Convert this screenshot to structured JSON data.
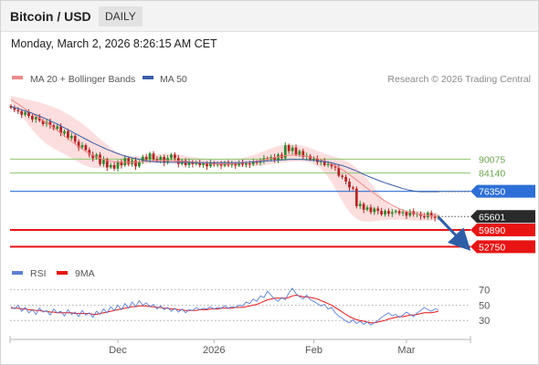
{
  "header": {
    "title": "Bitcoin / USD",
    "timeframe": "DAILY"
  },
  "datetime": "Monday, March 2, 2026 8:26:15 AM CET",
  "credit": "Research © 2026 Trading Central",
  "colors": {
    "bollinger": "#f08a8a",
    "ma50": "#3b5ea8",
    "up": "#2c8a2c",
    "down": "#b82222",
    "resistance": "#8cc66e",
    "pivot": "#2d6fd6",
    "support": "#e81414",
    "rsi": "#5b7fd4"
  },
  "chart_data": [
    {
      "type": "candlestick",
      "legend": [
        {
          "name": "MA 20 + Bollinger Bands",
          "color": "#f08a8a"
        },
        {
          "name": "MA 50",
          "color": "#3b5ea8"
        }
      ],
      "x_ticks": [
        "Dec",
        "2026",
        "Feb",
        "Mar"
      ],
      "ylim": [
        49000,
        119000
      ],
      "last_price": "65601",
      "levels": [
        {
          "value": 90075,
          "label": "90075",
          "kind": "resistance"
        },
        {
          "value": 84140,
          "label": "84140",
          "kind": "resistance"
        },
        {
          "value": 76350,
          "label": "76350",
          "kind": "pivot"
        },
        {
          "value": 59890,
          "label": "59890",
          "kind": "support"
        },
        {
          "value": 52750,
          "label": "52750",
          "kind": "support"
        }
      ],
      "close": [
        112000,
        111000,
        110500,
        109000,
        110000,
        108500,
        107000,
        108000,
        106500,
        105000,
        106000,
        104500,
        103000,
        104000,
        101000,
        102000,
        99000,
        100000,
        97500,
        95000,
        96000,
        94000,
        92000,
        90500,
        92000,
        88000,
        90000,
        86500,
        87500,
        86000,
        89000,
        87500,
        90500,
        88000,
        89500,
        87000,
        89000,
        91000,
        90000,
        92500,
        90000,
        89500,
        91000,
        88500,
        90500,
        92000,
        90500,
        88000,
        89500,
        87500,
        89000,
        88000,
        88500,
        87500,
        88200,
        87000,
        88500,
        87800,
        88000,
        87300,
        88700,
        87600,
        88100,
        87400,
        88600,
        87700,
        88300,
        87800,
        89000,
        88500,
        89500,
        90500,
        90000,
        91000,
        89800,
        92000,
        90500,
        96000,
        93500,
        95000,
        92000,
        93500,
        91000,
        91500,
        90000,
        90300,
        88800,
        89500,
        87500,
        88000,
        87000,
        86500,
        83000,
        82500,
        80500,
        78000,
        77500,
        70000,
        71000,
        68500,
        69500,
        67500,
        69000,
        68000,
        66500,
        68000,
        66800,
        67500,
        68000,
        67000,
        67500,
        66000,
        67800,
        66500,
        66800,
        65800,
        65300,
        67200,
        65600,
        65000,
        65601
      ],
      "series_ma20": [
        115500,
        114500,
        113500,
        112500,
        111500,
        110500,
        109500,
        108500,
        107500,
        106500,
        105500,
        104500,
        103500,
        102300,
        101200,
        100000,
        98800,
        97600,
        96500,
        95400,
        94400,
        93400,
        92500,
        91700,
        91000,
        90400,
        89900,
        89500,
        89200,
        89000,
        88900,
        88800,
        88700,
        88700,
        88700,
        88800,
        88900,
        89000,
        89100,
        89200,
        89300,
        89400,
        89500,
        89500,
        89500,
        89400,
        89300,
        89200,
        89100,
        89000,
        88900,
        88800,
        88700,
        88600,
        88500,
        88400,
        88300,
        88200,
        88100,
        88100,
        88100,
        88100,
        88150,
        88200,
        88300,
        88400,
        88600,
        88800,
        89000,
        89200,
        89500,
        89800,
        90100,
        90400,
        90700,
        91000,
        91300,
        91500,
        91700,
        91800,
        91800,
        91700,
        91500,
        91300,
        91000,
        90700,
        90300,
        89800,
        89300,
        88700,
        88000,
        87300,
        86500,
        85600,
        84600,
        83500,
        82400,
        81200,
        80000,
        78800,
        77600,
        76500,
        75400,
        74300,
        73200,
        72200,
        71300,
        70400,
        69600,
        68900,
        68300,
        67800,
        67400,
        67000,
        66700,
        66400,
        66200,
        66000,
        65900,
        65800,
        65800
      ],
      "series_bb_upper": [
        117000,
        116700,
        116400,
        116000,
        115700,
        115300,
        115000,
        114600,
        114200,
        113800,
        113300,
        112800,
        112200,
        111600,
        110900,
        110100,
        109200,
        108300,
        107300,
        106300,
        105200,
        104000,
        102800,
        101400,
        100000,
        98700,
        97400,
        96100,
        94900,
        93800,
        92900,
        92200,
        91700,
        91400,
        91300,
        91300,
        91300,
        91400,
        91600,
        91800,
        92000,
        92200,
        92300,
        92400,
        92400,
        92300,
        92200,
        92000,
        91800,
        91500,
        91200,
        91000,
        90800,
        90500,
        90300,
        90100,
        89900,
        89800,
        89700,
        89600,
        89600,
        89700,
        89800,
        90000,
        90200,
        90500,
        90900,
        91300,
        91800,
        92300,
        92900,
        93500,
        94100,
        94700,
        95200,
        95700,
        96000,
        96200,
        96300,
        96300,
        96200,
        96000,
        95700,
        95300,
        94800,
        94200,
        93600,
        93000,
        92500,
        92000,
        91500,
        91000,
        90500,
        90000,
        89300,
        88500,
        87500,
        86300,
        84900,
        83300,
        81500,
        79700,
        77800,
        75900,
        74000,
        72200,
        70600,
        69400,
        68600,
        68200,
        68100,
        68200,
        68200,
        68100,
        68000,
        67800,
        67600,
        67400,
        67200,
        67100,
        67100
      ],
      "series_bb_lower": [
        114000,
        112500,
        110500,
        108500,
        106500,
        104500,
        102500,
        100800,
        99200,
        97800,
        96500,
        95500,
        94600,
        93800,
        93000,
        92200,
        91300,
        90400,
        89500,
        88700,
        87900,
        87300,
        86700,
        86400,
        86200,
        86200,
        86300,
        86500,
        86700,
        86900,
        87000,
        87100,
        87200,
        87300,
        87400,
        87600,
        87800,
        88000,
        88200,
        88300,
        88400,
        88500,
        88500,
        88500,
        88400,
        88300,
        88200,
        88100,
        88000,
        87900,
        87800,
        87700,
        87600,
        87500,
        87400,
        87300,
        87200,
        87200,
        87200,
        87100,
        87000,
        87000,
        86900,
        86900,
        86900,
        86900,
        86900,
        87000,
        87100,
        87200,
        87300,
        87500,
        87700,
        87900,
        88100,
        88300,
        88500,
        88700,
        88900,
        89100,
        89200,
        89200,
        89100,
        88900,
        88500,
        87900,
        87100,
        85900,
        84400,
        82500,
        80200,
        77600,
        74900,
        72100,
        69700,
        67600,
        65900,
        64700,
        63900,
        63500,
        63400,
        63500,
        63600,
        63800,
        64000,
        64100,
        64200,
        64300,
        64300,
        64300,
        64200,
        64100,
        64000,
        63900,
        63800,
        63800,
        63800,
        63800,
        63900,
        64000,
        64000
      ],
      "series_ma50": [
        112500,
        112000,
        111600,
        111100,
        110600,
        110100,
        109600,
        109000,
        108400,
        107800,
        107100,
        106400,
        105700,
        105000,
        104200,
        103400,
        102600,
        101800,
        101000,
        100200,
        99400,
        98600,
        97800,
        97000,
        96300,
        95600,
        94900,
        94200,
        93600,
        93000,
        92400,
        91900,
        91400,
        91000,
        90600,
        90300,
        90000,
        89700,
        89400,
        89200,
        89000,
        88900,
        88800,
        88700,
        88700,
        88700,
        88700,
        88700,
        88700,
        88700,
        88700,
        88600,
        88600,
        88600,
        88600,
        88600,
        88600,
        88600,
        88600,
        88600,
        88600,
        88600,
        88600,
        88600,
        88600,
        88600,
        88700,
        88800,
        88900,
        89000,
        89100,
        89200,
        89300,
        89400,
        89500,
        89600,
        89700,
        89800,
        89900,
        89900,
        89900,
        89900,
        89900,
        89800,
        89700,
        89600,
        89400,
        89200,
        89000,
        88800,
        88500,
        88100,
        87700,
        87300,
        86800,
        86200,
        85600,
        85000,
        84300,
        83600,
        82900,
        82300,
        81700,
        81100,
        80500,
        80000,
        79500,
        79000,
        78500,
        78000,
        77500,
        77100,
        76800,
        76500,
        76300,
        76200,
        76200,
        76200,
        76200,
        76200,
        76200
      ]
    },
    {
      "type": "line",
      "legend": [
        {
          "name": "RSI",
          "color": "#5b7fd4"
        },
        {
          "name": "9MA",
          "color": "#e81414"
        }
      ],
      "y_ticks": [
        "70",
        "50",
        "30"
      ],
      "ylim": [
        10,
        85
      ],
      "series_rsi": [
        48,
        45,
        50,
        42,
        47,
        40,
        44,
        38,
        46,
        41,
        43,
        37,
        45,
        40,
        42,
        36,
        44,
        38,
        41,
        35,
        43,
        37,
        40,
        34,
        42,
        38,
        45,
        40,
        48,
        43,
        50,
        44,
        52,
        46,
        54,
        48,
        56,
        50,
        53,
        48,
        51,
        45,
        49,
        44,
        47,
        42,
        46,
        41,
        45,
        40,
        44,
        43,
        47,
        44,
        46,
        45,
        48,
        45,
        47,
        46,
        49,
        46,
        48,
        47,
        50,
        49,
        54,
        52,
        58,
        55,
        62,
        60,
        68,
        63,
        58,
        55,
        60,
        57,
        66,
        72,
        65,
        61,
        58,
        63,
        57,
        55,
        52,
        49,
        51,
        45,
        47,
        40,
        36,
        33,
        29,
        27,
        31,
        26,
        29,
        25,
        28,
        24,
        27,
        30,
        34,
        37,
        40,
        36,
        38,
        34,
        37,
        41,
        38,
        35,
        40,
        43,
        47,
        44,
        42,
        45,
        44
      ],
      "series_9ma": [
        46,
        46,
        46,
        45,
        45,
        44,
        44,
        43,
        43,
        42,
        42,
        41,
        41,
        40,
        40,
        40,
        40,
        40,
        39,
        39,
        39,
        39,
        39,
        38,
        38,
        39,
        40,
        41,
        42,
        43,
        44,
        45,
        46,
        47,
        48,
        48,
        49,
        49,
        49,
        48,
        48,
        47,
        47,
        46,
        46,
        45,
        45,
        44,
        44,
        43,
        43,
        43,
        43,
        44,
        44,
        44,
        45,
        45,
        45,
        46,
        46,
        46,
        46,
        47,
        47,
        47,
        48,
        49,
        50,
        51,
        53,
        55,
        57,
        58,
        59,
        59,
        59,
        59,
        60,
        62,
        63,
        62,
        61,
        61,
        60,
        59,
        58,
        56,
        54,
        52,
        50,
        47,
        44,
        41,
        38,
        35,
        33,
        31,
        30,
        29,
        28,
        27,
        27,
        28,
        29,
        30,
        32,
        33,
        34,
        35,
        35,
        36,
        37,
        37,
        38,
        39,
        40,
        40,
        40,
        41,
        42
      ]
    }
  ]
}
